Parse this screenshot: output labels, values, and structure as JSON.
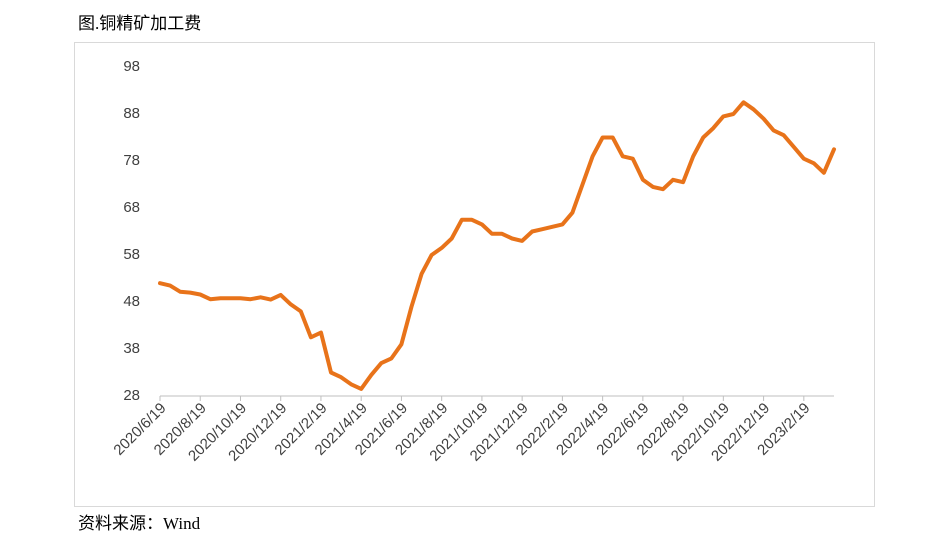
{
  "chart_data": {
    "type": "line",
    "title": "图.铜精矿加工费",
    "source": "资料来源：Wind",
    "categories": [
      "2020/6/19",
      null,
      null,
      null,
      "2020/8/19",
      null,
      null,
      null,
      "2020/10/19",
      null,
      null,
      null,
      "2020/12/19",
      null,
      null,
      null,
      "2021/2/19",
      null,
      null,
      null,
      "2021/4/19",
      null,
      null,
      null,
      "2021/6/19",
      null,
      null,
      null,
      "2021/8/19",
      null,
      null,
      null,
      "2021/10/19",
      null,
      null,
      null,
      "2021/12/19",
      null,
      null,
      null,
      "2022/2/19",
      null,
      null,
      null,
      "2022/4/19",
      null,
      null,
      null,
      "2022/6/19",
      null,
      null,
      null,
      "2022/8/19",
      null,
      null,
      null,
      "2022/10/19",
      null,
      null,
      null,
      "2022/12/19",
      null,
      null,
      null,
      "2023/2/19",
      null,
      null,
      null
    ],
    "values": [
      52,
      51.5,
      50.2,
      50,
      49.6,
      48.6,
      48.8,
      48.8,
      48.8,
      48.6,
      49,
      48.5,
      49.5,
      47.5,
      46,
      40.5,
      41.5,
      33,
      32,
      30.5,
      29.5,
      32.5,
      35,
      36,
      39,
      47,
      54,
      58,
      59.5,
      61.5,
      65.5,
      65.5,
      64.5,
      62.5,
      62.5,
      61.5,
      61,
      63,
      63.5,
      64,
      64.5,
      67,
      73,
      79,
      83,
      83,
      79,
      78.5,
      74,
      72.5,
      72,
      74,
      73.5,
      79,
      83,
      85,
      87.5,
      88,
      90.5,
      89,
      87,
      84.5,
      83.5,
      81,
      78.5,
      77.5,
      75.5,
      80.5
    ],
    "color": "#E8731A",
    "ylim": [
      28,
      98
    ],
    "yticks": [
      28,
      38,
      48,
      58,
      68,
      78,
      88,
      98
    ],
    "grid": false
  }
}
